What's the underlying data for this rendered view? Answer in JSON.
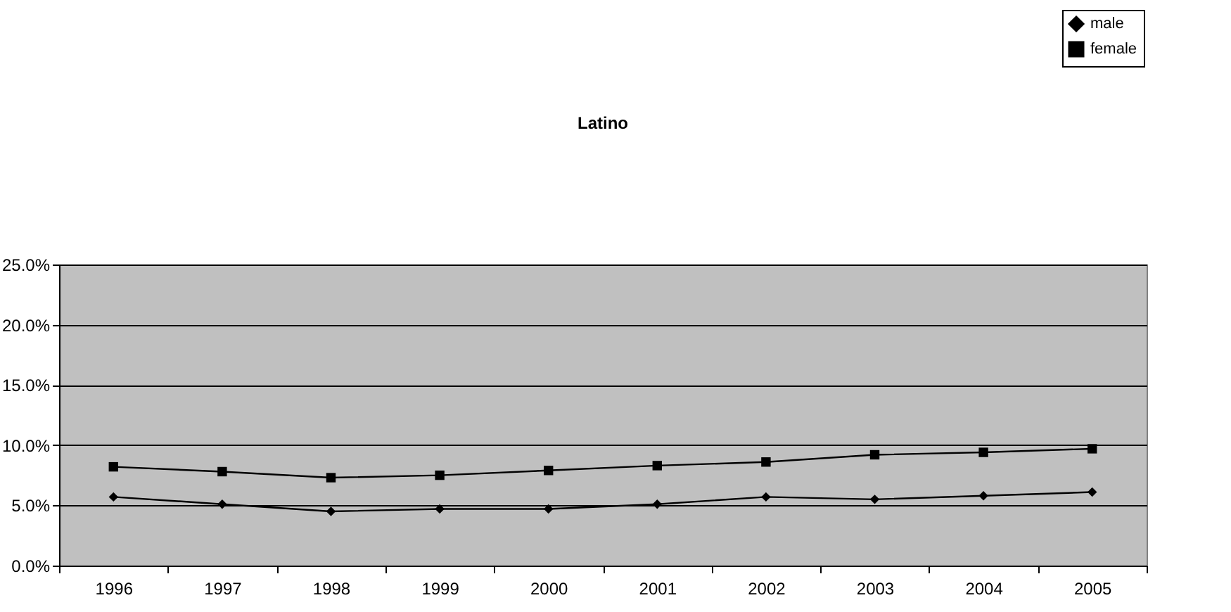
{
  "chart_data": {
    "type": "line",
    "title": "Latino",
    "categories": [
      "1996",
      "1997",
      "1998",
      "1999",
      "2000",
      "2001",
      "2002",
      "2003",
      "2004",
      "2005"
    ],
    "series": [
      {
        "name": "male",
        "color": "#000000",
        "marker": "diamond",
        "values": [
          5.7,
          5.1,
          4.5,
          4.7,
          4.7,
          5.1,
          5.7,
          5.5,
          5.8,
          6.1
        ]
      },
      {
        "name": "female",
        "color": "#000000",
        "marker": "square",
        "values": [
          8.2,
          7.8,
          7.3,
          7.5,
          7.9,
          8.3,
          8.6,
          9.2,
          9.4,
          9.7
        ]
      }
    ],
    "ylim": [
      0,
      25
    ],
    "yticks": [
      {
        "value": 0,
        "label": "0.0%"
      },
      {
        "value": 5,
        "label": "5.0%"
      },
      {
        "value": 10,
        "label": "10.0%"
      },
      {
        "value": 15,
        "label": "15.0%"
      },
      {
        "value": 20,
        "label": "20.0%"
      },
      {
        "value": 25,
        "label": "25.0%"
      }
    ],
    "grid": "y",
    "legend": "top right",
    "line_style": "solid"
  }
}
